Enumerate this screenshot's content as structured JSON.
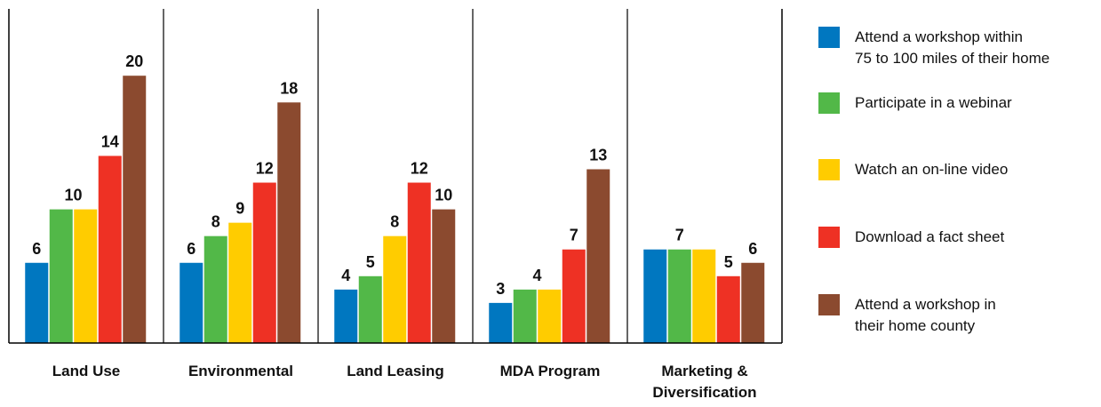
{
  "chart_data": {
    "type": "bar",
    "categories": [
      "Land Use",
      "Environmental",
      "Land Leasing",
      "MDA Program",
      "Marketing &\nDiversification"
    ],
    "series": [
      {
        "name": "Attend a workshop within\n75 to 100 miles of their home",
        "color": "#0077c0",
        "values": [
          6,
          6,
          4,
          3,
          7
        ]
      },
      {
        "name": "Participate in a webinar",
        "color": "#52b848",
        "values": [
          10,
          8,
          5,
          4,
          7
        ]
      },
      {
        "name": "Watch an on-line video",
        "color": "#ffcc00",
        "values": [
          10,
          9,
          8,
          4,
          7
        ]
      },
      {
        "name": "Download a fact sheet",
        "color": "#ee3124",
        "values": [
          14,
          12,
          12,
          7,
          5
        ]
      },
      {
        "name": "Attend a workshop in\ntheir home county",
        "color": "#8b4a2f",
        "values": [
          20,
          18,
          10,
          13,
          6
        ]
      }
    ],
    "ylim": [
      0,
      25
    ]
  }
}
